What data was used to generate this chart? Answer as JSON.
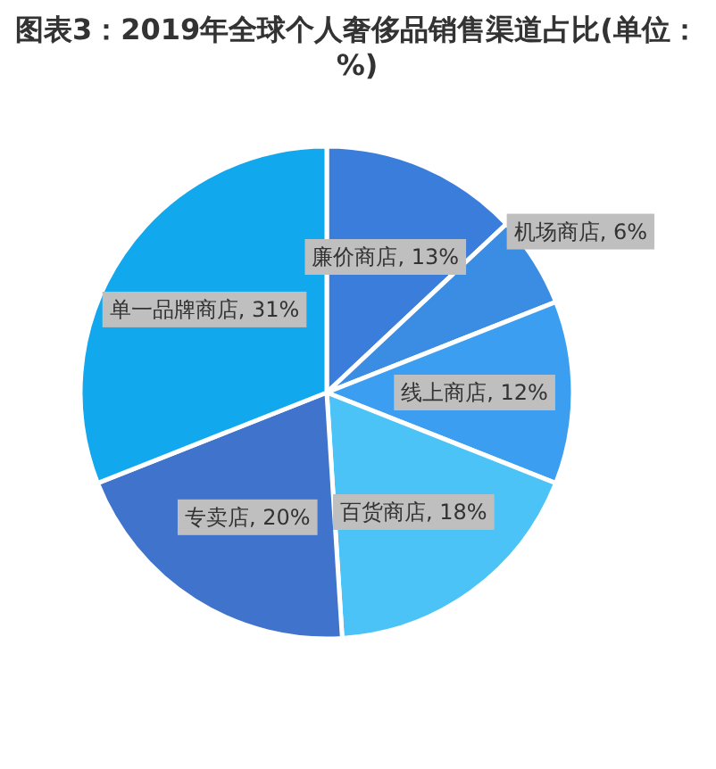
{
  "chart_data": {
    "type": "pie",
    "title": "图表3：2019年全球个人奢侈品销售渠道占比(单位：%)",
    "categories": [
      "廉价商店",
      "机场商店",
      "线上商店",
      "百货商店",
      "专卖店",
      "单一品牌商店"
    ],
    "values": [
      13,
      6,
      12,
      18,
      20,
      31
    ],
    "value_labels": [
      ", 13%",
      ", 6%",
      ", 12%",
      ", 18%",
      ", 20%",
      ", 31%"
    ],
    "colors": [
      "#3b7ddb",
      "#3a8de3",
      "#3c9ef0",
      "#4cc3f7",
      "#3f73cc",
      "#12a8ee"
    ]
  }
}
